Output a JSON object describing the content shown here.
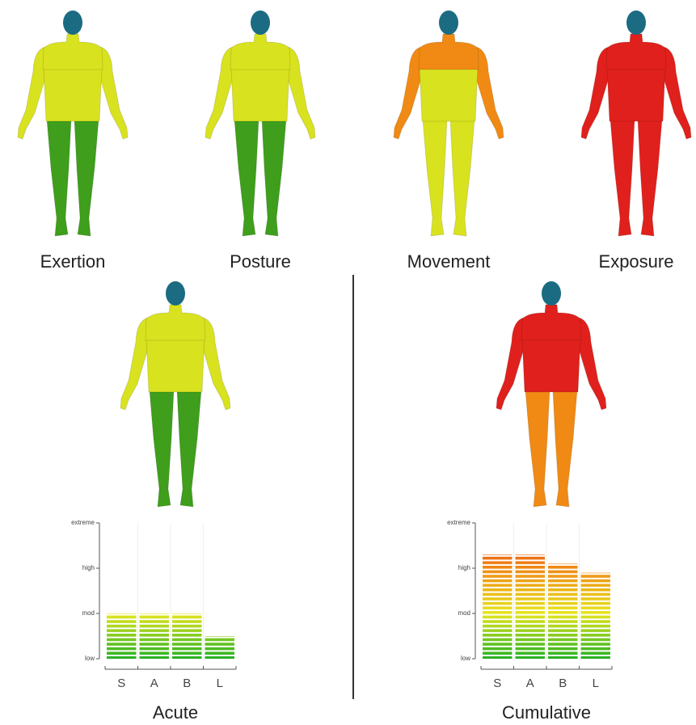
{
  "figures": [
    {
      "label": "Exertion",
      "shoulders": "#d9e21f",
      "torso": "#d9e21f",
      "arms": "#d9e21f",
      "legs": "#3f9e1c"
    },
    {
      "label": "Posture",
      "shoulders": "#d9e21f",
      "torso": "#d9e21f",
      "arms": "#d9e21f",
      "legs": "#3f9e1c"
    },
    {
      "label": "Movement",
      "shoulders": "#f08a14",
      "torso": "#d9e21f",
      "arms": "#f08a14",
      "legs": "#d9e21f"
    },
    {
      "label": "Exposure",
      "shoulders": "#e0201c",
      "torso": "#e0201c",
      "arms": "#e0201c",
      "legs": "#e0201c"
    },
    {
      "shoulders": "#d9e21f",
      "torso": "#d9e21f",
      "arms": "#d9e21f",
      "legs": "#3f9e1c"
    },
    {
      "shoulders": "#e0201c",
      "torso": "#e0201c",
      "arms": "#e0201c",
      "legs": "#f08a14"
    }
  ],
  "head_color": "#1b6b82",
  "chart_data": [
    {
      "type": "bar",
      "title": "Acute",
      "categories": [
        "S",
        "A",
        "B",
        "L"
      ],
      "values": [
        1,
        1,
        1,
        0.5
      ],
      "ylim": [
        0,
        3
      ],
      "yticks": [
        {
          "value": 0,
          "label": "low"
        },
        {
          "value": 1,
          "label": "mod"
        },
        {
          "value": 2,
          "label": "high"
        },
        {
          "value": 3,
          "label": "extreme"
        }
      ],
      "colors": [
        "#22b022",
        "#e6e61e",
        "#f08a14",
        "#e0201c"
      ]
    },
    {
      "type": "bar",
      "title": "Cumulative",
      "categories": [
        "S",
        "A",
        "B",
        "L"
      ],
      "values": [
        2.3,
        2.3,
        2.1,
        1.9
      ],
      "ylim": [
        0,
        3
      ],
      "yticks": [
        {
          "value": 0,
          "label": "low"
        },
        {
          "value": 1,
          "label": "mod"
        },
        {
          "value": 2,
          "label": "high"
        },
        {
          "value": 3,
          "label": "extreme"
        }
      ],
      "colors": [
        "#22b022",
        "#e6e61e",
        "#f08a14",
        "#e0201c"
      ]
    }
  ]
}
